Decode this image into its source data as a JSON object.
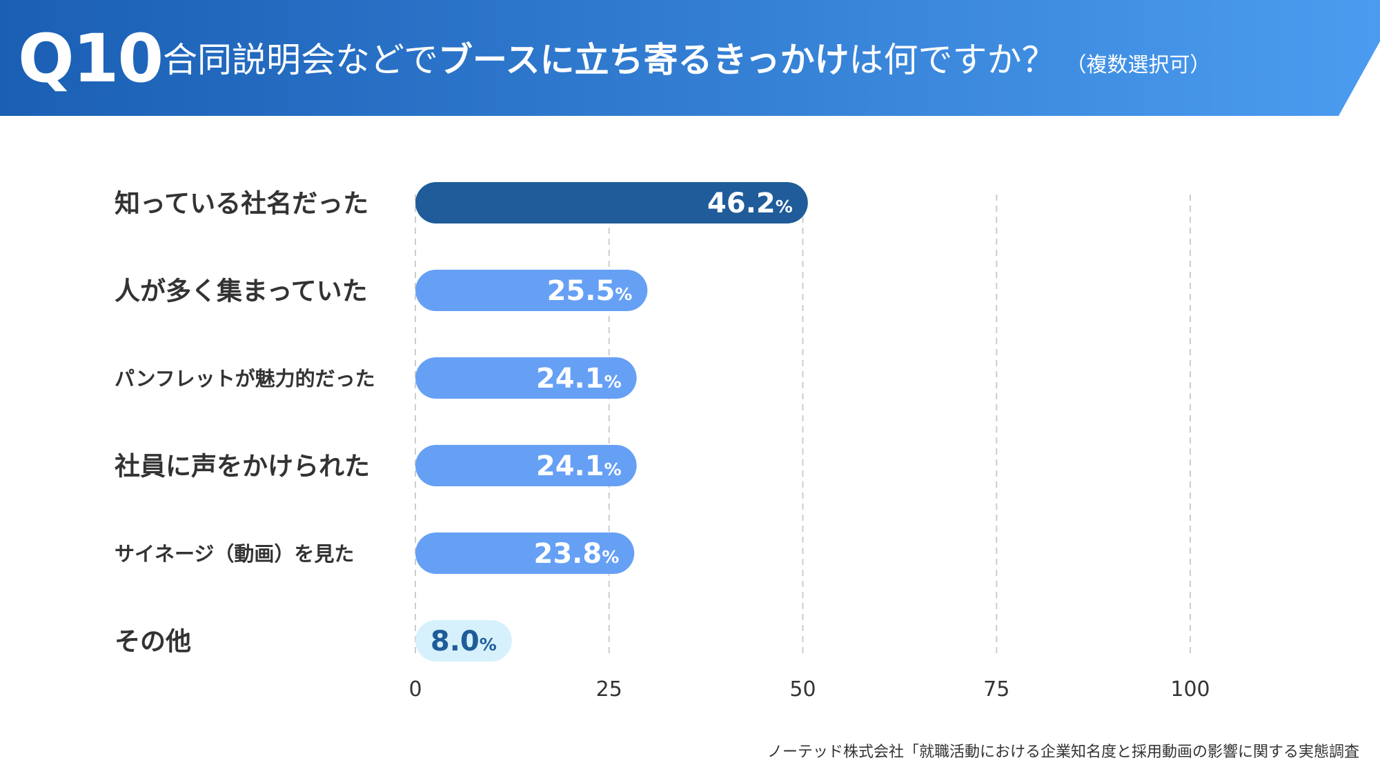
{
  "header": {
    "question_no": "Q10",
    "title_part1": "合同説明会などで",
    "title_bold": "ブースに立ち寄るきっかけ",
    "title_part2": "は何ですか？",
    "title_note": "（複数選択可）",
    "gradient_start": "#1a5fb4",
    "gradient_end": "#4b9cf0"
  },
  "chart_data": {
    "type": "bar",
    "orientation": "horizontal",
    "categories": [
      "知っている社名だった",
      "人が多く集まっていた",
      "パンフレットが魅力的だった",
      "社員に声をかけられた",
      "サイネージ（動画）を見た",
      "その他"
    ],
    "values": [
      46.2,
      25.5,
      24.1,
      24.1,
      23.8,
      8.0
    ],
    "value_labels": [
      "46.2",
      "25.5",
      "24.1",
      "24.1",
      "23.8",
      "8.0"
    ],
    "unit": "%",
    "bar_colors": [
      "#1f5c99",
      "#66a0f5",
      "#66a0f5",
      "#66a0f5",
      "#66a0f5",
      "#d6f1fb"
    ],
    "label_colors": [
      "#ffffff",
      "#ffffff",
      "#ffffff",
      "#ffffff",
      "#ffffff",
      "#1f5c99"
    ],
    "xticks": [
      "0",
      "25",
      "50",
      "75",
      "100"
    ],
    "xlim": [
      0,
      100
    ],
    "grid": true,
    "title": "",
    "xlabel": "",
    "ylabel": ""
  },
  "source": "ノーテッド株式会社「就職活動における企業知名度と採用動画の影響に関する実態調査"
}
